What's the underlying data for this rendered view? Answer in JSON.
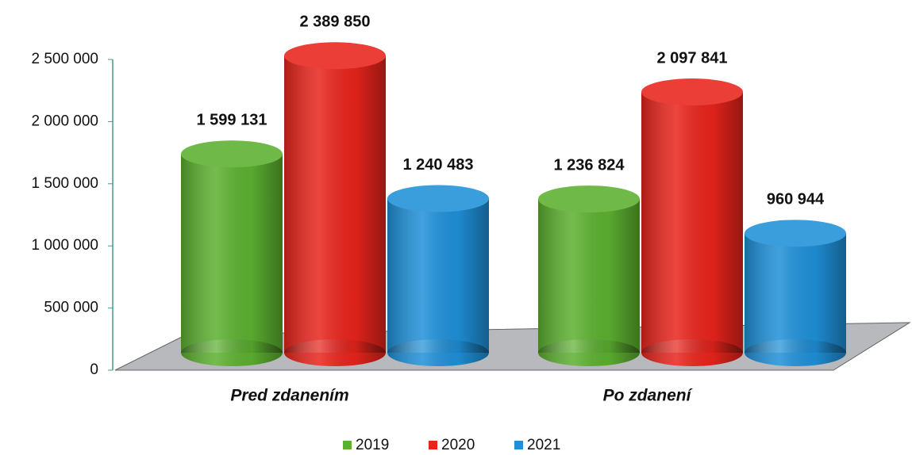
{
  "chart_data": {
    "type": "bar3d",
    "categories": [
      "Pred zdanením",
      "Po zdanení"
    ],
    "series": [
      {
        "name": "2019",
        "color": "#5cb030",
        "values": [
          1599131,
          1236824
        ],
        "value_labels": [
          "1 599 131",
          "1 236 824"
        ]
      },
      {
        "name": "2020",
        "color": "#e8241c",
        "values": [
          2389850,
          2097841
        ],
        "value_labels": [
          "2 389 850",
          "2 097 841"
        ]
      },
      {
        "name": "2021",
        "color": "#1f90d8",
        "values": [
          1240483,
          960944
        ],
        "value_labels": [
          "1 240 483",
          "960 944"
        ]
      }
    ],
    "ylim": [
      0,
      2500000
    ],
    "yticks": [
      0,
      {
        "value": 500000,
        "label": "500 000"
      },
      {
        "value": 1000000,
        "label": "1 000 000"
      },
      {
        "value": 1500000,
        "label": "1 500 000"
      },
      {
        "value": 2000000,
        "label": "2 000 000"
      },
      {
        "value": 2500000,
        "label": "2 500 000"
      }
    ],
    "legend": "bottom"
  }
}
